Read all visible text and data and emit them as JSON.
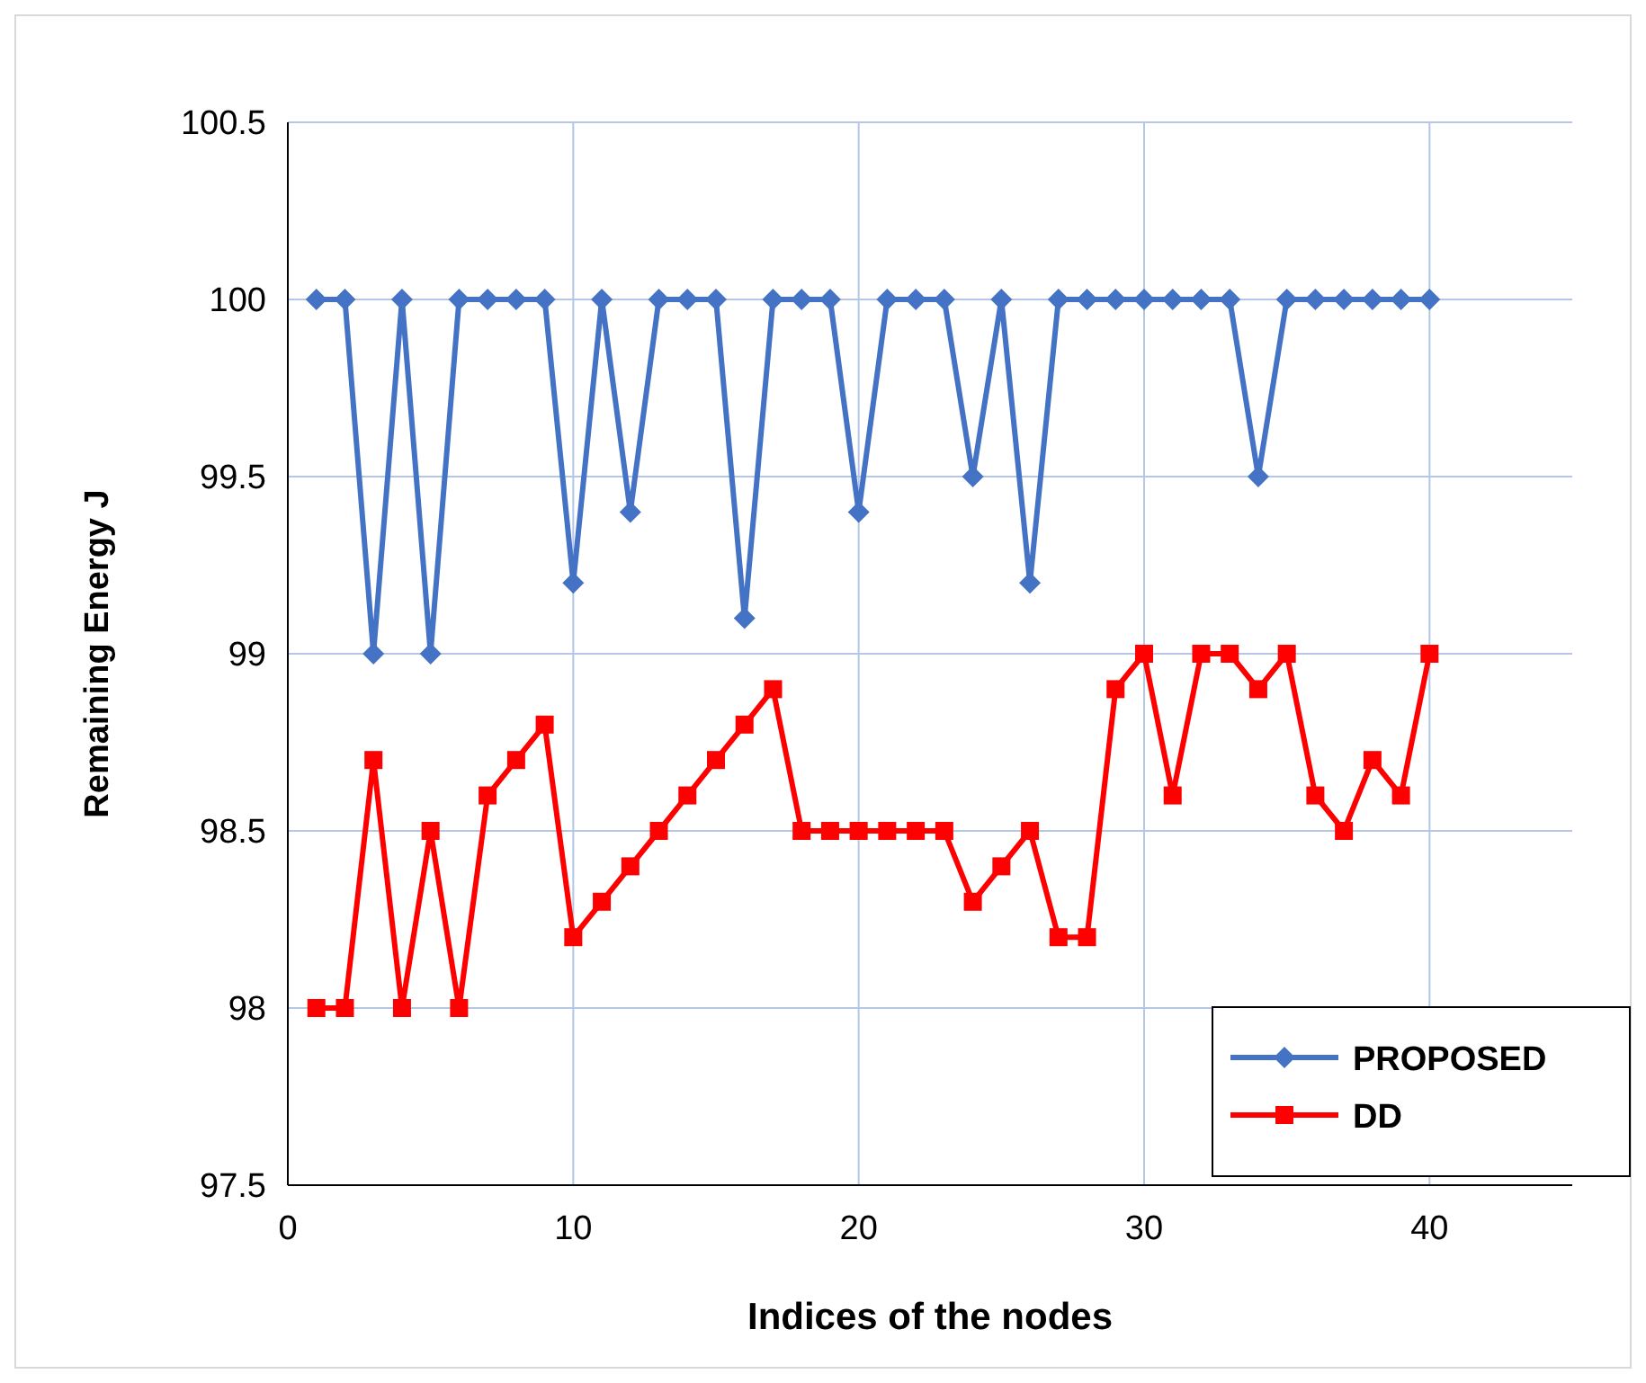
{
  "chart_data": {
    "type": "line",
    "xlabel": "Indices of the nodes",
    "ylabel": "Remaining Energy J",
    "x": [
      1,
      2,
      3,
      4,
      5,
      6,
      7,
      8,
      9,
      10,
      11,
      12,
      13,
      14,
      15,
      16,
      17,
      18,
      19,
      20,
      21,
      22,
      23,
      24,
      25,
      26,
      27,
      28,
      29,
      30,
      31,
      32,
      33,
      34,
      35,
      36,
      37,
      38,
      39,
      40
    ],
    "series": [
      {
        "name": "PROPOSED",
        "color": "#4472c4",
        "marker": "diamond",
        "values": [
          100,
          100,
          99,
          100,
          99,
          100,
          100,
          100,
          100,
          99.2,
          100,
          99.4,
          100,
          100,
          100,
          99.1,
          100,
          100,
          100,
          99.4,
          100,
          100,
          100,
          99.5,
          100,
          99.2,
          100,
          100,
          100,
          100,
          100,
          100,
          100,
          99.5,
          100,
          100,
          100,
          100,
          100,
          100
        ]
      },
      {
        "name": "DD",
        "color": "#ff0000",
        "marker": "square",
        "values": [
          98,
          98,
          98.7,
          98,
          98.5,
          98,
          98.6,
          98.7,
          98.8,
          98.2,
          98.3,
          98.4,
          98.5,
          98.6,
          98.7,
          98.8,
          98.9,
          98.5,
          98.5,
          98.5,
          98.5,
          98.5,
          98.5,
          98.3,
          98.4,
          98.5,
          98.2,
          98.2,
          98.9,
          99,
          98.6,
          99,
          99,
          98.9,
          99,
          98.6,
          98.5,
          98.7,
          98.6,
          99
        ]
      }
    ],
    "xlim": [
      0,
      45
    ],
    "xticks": [
      0,
      10,
      20,
      30,
      40
    ],
    "ylim": [
      97.5,
      100.5
    ],
    "yticks": [
      {
        "value": 97.5,
        "label": "97.5"
      },
      {
        "value": 98,
        "label": "98"
      },
      {
        "value": 98.5,
        "label": "98.5"
      },
      {
        "value": 99,
        "label": "99"
      },
      {
        "value": 99.5,
        "label": "99.5"
      },
      {
        "value": 100,
        "label": "100"
      },
      {
        "value": 100.5,
        "label": "100.5"
      }
    ],
    "grid": true,
    "legend": "bottom right",
    "line_style": "solid"
  }
}
